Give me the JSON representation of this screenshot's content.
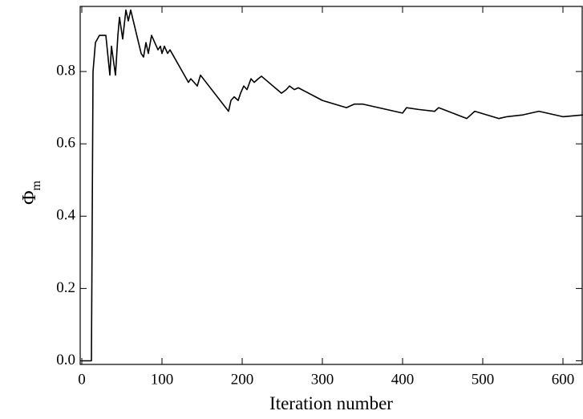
{
  "chart_data": {
    "type": "line",
    "x_label": "Iteration number",
    "y_label": "Φ",
    "y_label_subscript": "m",
    "color": "#000000",
    "x": [
      0,
      12,
      14,
      17,
      22,
      30,
      35,
      37,
      42,
      45,
      47,
      51,
      55,
      58,
      61,
      74,
      77,
      80,
      83,
      87,
      95,
      98,
      100,
      103,
      107,
      110,
      133,
      136,
      144,
      148,
      183,
      186,
      190,
      195,
      198,
      202,
      206,
      211,
      215,
      220,
      224,
      249,
      255,
      259,
      265,
      270,
      300,
      330,
      340,
      350,
      370,
      400,
      405,
      420,
      440,
      445,
      480,
      490,
      520,
      530,
      550,
      570,
      600,
      625
    ],
    "values": [
      0.0,
      0.0,
      0.8,
      0.88,
      0.9,
      0.9,
      0.79,
      0.87,
      0.79,
      0.9,
      0.95,
      0.89,
      0.97,
      0.94,
      0.97,
      0.85,
      0.84,
      0.88,
      0.85,
      0.9,
      0.86,
      0.87,
      0.85,
      0.87,
      0.85,
      0.86,
      0.77,
      0.78,
      0.76,
      0.79,
      0.69,
      0.72,
      0.73,
      0.72,
      0.74,
      0.76,
      0.75,
      0.78,
      0.77,
      0.78,
      0.787,
      0.74,
      0.75,
      0.76,
      0.75,
      0.755,
      0.72,
      0.7,
      0.71,
      0.71,
      0.7,
      0.685,
      0.7,
      0.695,
      0.69,
      0.7,
      0.67,
      0.69,
      0.67,
      0.675,
      0.68,
      0.69,
      0.675,
      0.68
    ],
    "xlim": [
      -2,
      624
    ],
    "ylim": [
      -0.01,
      0.98
    ],
    "xticks": [
      0,
      100,
      200,
      300,
      400,
      500,
      600
    ],
    "yticks": [
      {
        "value": 0,
        "label": "0.0"
      },
      0.2,
      0.4,
      0.6,
      0.8
    ]
  }
}
